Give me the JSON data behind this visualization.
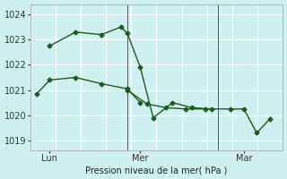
{
  "background_color": "#cff0f0",
  "plot_bg_color": "#cff0f0",
  "line_color": "#1a5c1a",
  "grid_color": "#ffffff",
  "xlabel": "Pression niveau de la mer( hPa )",
  "ylim": [
    1018.6,
    1024.4
  ],
  "yticks": [
    1019,
    1020,
    1021,
    1022,
    1023,
    1024
  ],
  "xlim": [
    0,
    19.5
  ],
  "xtick_positions": [
    1.5,
    8.5,
    16.5
  ],
  "xtick_labels": [
    "Lun",
    "Mer",
    "Mar"
  ],
  "vline_x": [
    7.5,
    14.5
  ],
  "line1_x": [
    0.5,
    1.5,
    3.5,
    5.5,
    7.5,
    8.5
  ],
  "line1_y": [
    1020.85,
    1021.4,
    1021.5,
    1021.25,
    1021.05,
    1020.5
  ],
  "line2_x": [
    1.5,
    3.5,
    5.5,
    7.0,
    7.5,
    8.5,
    9.5,
    11.0,
    12.5,
    14.0
  ],
  "line2_y": [
    1022.75,
    1023.3,
    1023.2,
    1023.5,
    1023.25,
    1021.9,
    1019.9,
    1020.5,
    1020.3,
    1020.25
  ],
  "line3_x": [
    7.5,
    9.0,
    10.5,
    12.0,
    13.5,
    15.5,
    16.5,
    17.5,
    18.5
  ],
  "line3_y": [
    1021.0,
    1020.45,
    1020.3,
    1020.25,
    1020.25,
    1020.25,
    1020.25,
    1019.3,
    1019.85
  ],
  "marker_size": 2.5,
  "line_width": 1.0
}
